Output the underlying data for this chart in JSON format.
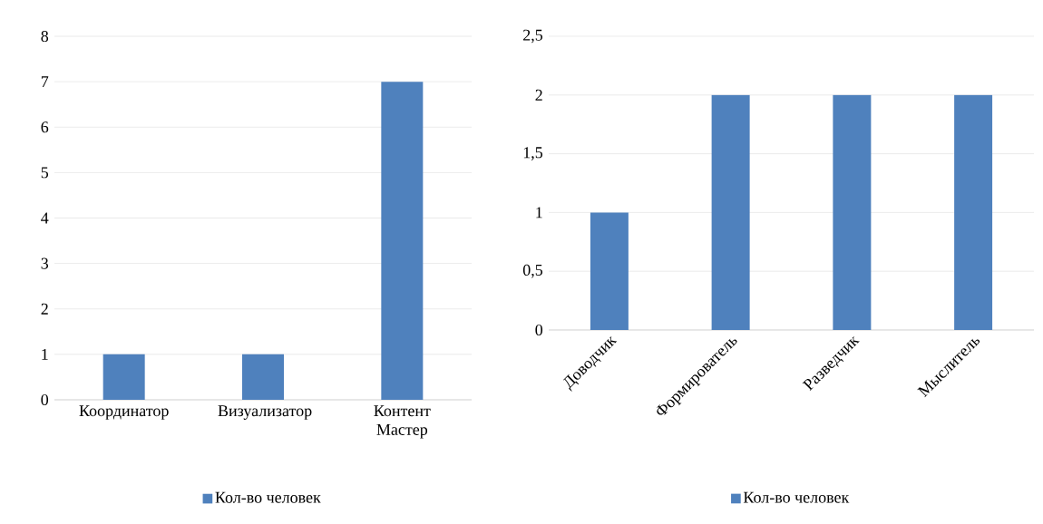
{
  "chart_data": [
    {
      "type": "bar",
      "categories": [
        "Координатор",
        "Визуализатор",
        "Контент Мастер"
      ],
      "series": [
        {
          "name": "Кол-во человек",
          "color": "#4f81bd",
          "values": [
            1,
            1,
            7
          ]
        }
      ],
      "ylim": [
        0,
        8
      ],
      "yticks": [
        0,
        1,
        2,
        3,
        4,
        5,
        6,
        7,
        8
      ],
      "grid": "y",
      "legend": "bottom"
    },
    {
      "type": "bar",
      "categories": [
        "Доводчик",
        "Формирователь",
        "Разведчик",
        "Мыслитель"
      ],
      "series": [
        {
          "name": "Кол-во человек",
          "color": "#4f81bd",
          "values": [
            1,
            2,
            2,
            2
          ]
        }
      ],
      "ylim": [
        0,
        2.5
      ],
      "yticks": [
        0,
        {
          "value": 0.5,
          "label": "0,5"
        },
        1,
        {
          "value": 1.5,
          "label": "1,5"
        },
        2,
        {
          "value": 2.5,
          "label": "2,5"
        }
      ],
      "grid": "y",
      "legend": "bottom"
    }
  ]
}
